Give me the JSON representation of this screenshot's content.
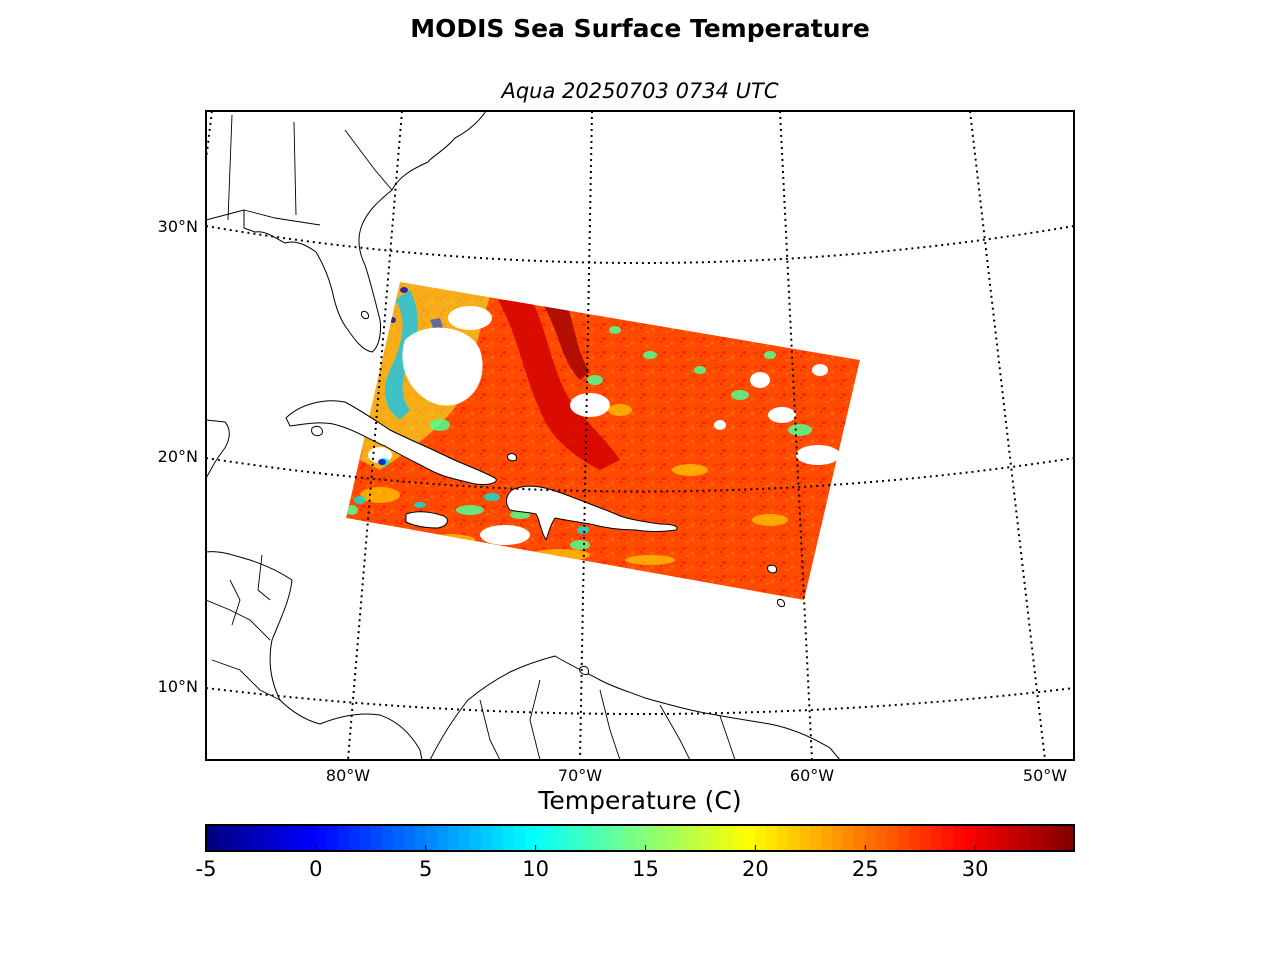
{
  "title": "MODIS Sea Surface Temperature",
  "subtitle": "Aqua 20250703 0734 UTC",
  "map": {
    "projection": "conic (Lambert-like)",
    "graticule_style": "dotted",
    "lat_labels": [
      "30°N",
      "20°N",
      "10°N"
    ],
    "lon_labels": [
      "80°W",
      "70°W",
      "60°W",
      "50°W"
    ],
    "land_color": "#ffffff",
    "coastline_color": "#000000",
    "missing_data_color": "#ffffff"
  },
  "colorbar": {
    "label": "Temperature (C)",
    "min": -5,
    "max": 34.5,
    "ticks": [
      "-5",
      "0",
      "5",
      "10",
      "15",
      "20",
      "25",
      "30"
    ],
    "colormap": "jet"
  }
}
